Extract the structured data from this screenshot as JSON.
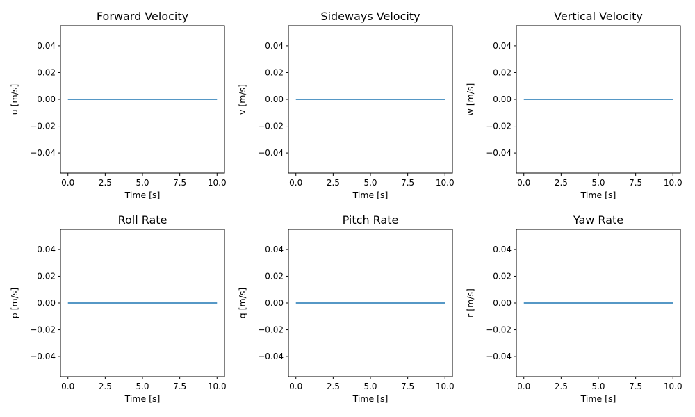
{
  "chart_data": [
    {
      "type": "line",
      "title": "Forward Velocity",
      "xlabel": "Time [s]",
      "ylabel": "u [m/s]",
      "xlim": [
        -0.5,
        10.5
      ],
      "ylim": [
        -0.055,
        0.055
      ],
      "xticks": [
        "0.0",
        "2.5",
        "5.0",
        "7.5",
        "10.0"
      ],
      "yticks": [
        "0.04",
        "0.02",
        "0.00",
        "−0.02",
        "−0.04"
      ],
      "grid": false,
      "series": [
        {
          "x": [
            0,
            10
          ],
          "values": [
            0,
            0
          ]
        }
      ]
    },
    {
      "type": "line",
      "title": "Sideways Velocity",
      "xlabel": "Time [s]",
      "ylabel": "v [m/s]",
      "xlim": [
        -0.5,
        10.5
      ],
      "ylim": [
        -0.055,
        0.055
      ],
      "xticks": [
        "0.0",
        "2.5",
        "5.0",
        "7.5",
        "10.0"
      ],
      "yticks": [
        "0.04",
        "0.02",
        "0.00",
        "−0.02",
        "−0.04"
      ],
      "grid": false,
      "series": [
        {
          "x": [
            0,
            10
          ],
          "values": [
            0,
            0
          ]
        }
      ]
    },
    {
      "type": "line",
      "title": "Vertical Velocity",
      "xlabel": "Time [s]",
      "ylabel": "w [m/s]",
      "xlim": [
        -0.5,
        10.5
      ],
      "ylim": [
        -0.055,
        0.055
      ],
      "xticks": [
        "0.0",
        "2.5",
        "5.0",
        "7.5",
        "10.0"
      ],
      "yticks": [
        "0.04",
        "0.02",
        "0.00",
        "−0.02",
        "−0.04"
      ],
      "grid": false,
      "series": [
        {
          "x": [
            0,
            10
          ],
          "values": [
            0,
            0
          ]
        }
      ]
    },
    {
      "type": "line",
      "title": "Roll Rate",
      "xlabel": "Time [s]",
      "ylabel": "p [m/s]",
      "xlim": [
        -0.5,
        10.5
      ],
      "ylim": [
        -0.055,
        0.055
      ],
      "xticks": [
        "0.0",
        "2.5",
        "5.0",
        "7.5",
        "10.0"
      ],
      "yticks": [
        "0.04",
        "0.02",
        "0.00",
        "−0.02",
        "−0.04"
      ],
      "grid": false,
      "series": [
        {
          "x": [
            0,
            10
          ],
          "values": [
            0,
            0
          ]
        }
      ]
    },
    {
      "type": "line",
      "title": "Pitch Rate",
      "xlabel": "Time [s]",
      "ylabel": "q [m/s]",
      "xlim": [
        -0.5,
        10.5
      ],
      "ylim": [
        -0.055,
        0.055
      ],
      "xticks": [
        "0.0",
        "2.5",
        "5.0",
        "7.5",
        "10.0"
      ],
      "yticks": [
        "0.04",
        "0.02",
        "0.00",
        "−0.02",
        "−0.04"
      ],
      "grid": false,
      "series": [
        {
          "x": [
            0,
            10
          ],
          "values": [
            0,
            0
          ]
        }
      ]
    },
    {
      "type": "line",
      "title": "Yaw Rate",
      "xlabel": "Time [s]",
      "ylabel": "r [m/s]",
      "xlim": [
        -0.5,
        10.5
      ],
      "ylim": [
        -0.055,
        0.055
      ],
      "xticks": [
        "0.0",
        "2.5",
        "5.0",
        "7.5",
        "10.0"
      ],
      "yticks": [
        "0.04",
        "0.02",
        "0.00",
        "−0.02",
        "−0.04"
      ],
      "grid": false,
      "series": [
        {
          "x": [
            0,
            10
          ],
          "values": [
            0,
            0
          ]
        }
      ]
    }
  ],
  "colors": {
    "line": "#1f77b4",
    "axes": "#000000",
    "background": "#ffffff"
  }
}
